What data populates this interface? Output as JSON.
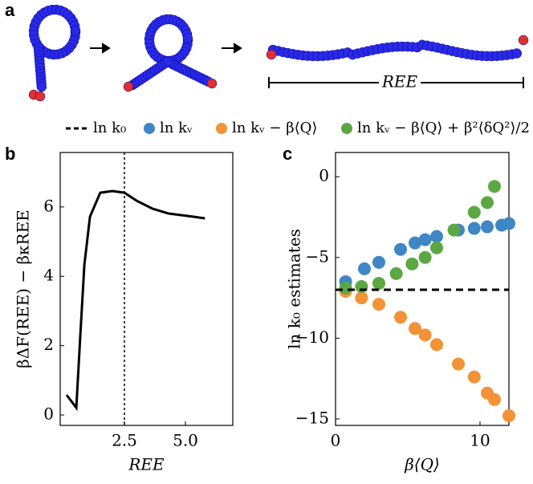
{
  "panel_labels": [
    "a",
    "b",
    "c"
  ],
  "ree_label": "REE",
  "legend": {
    "hline": "ln k₀",
    "series": [
      "ln kᵥ",
      "ln kᵥ − β⟨Q⟩",
      "ln kᵥ − β⟨Q⟩ + β²⟨δQ²⟩/2"
    ]
  },
  "chart_data": [
    {
      "type": "line",
      "x_label": "REE",
      "y_label": "βΔF(REE) − βκREE",
      "x": [
        0.13,
        0.53,
        0.69,
        0.86,
        1.09,
        1.51,
        2.01,
        2.5,
        3.0,
        3.65,
        4.31,
        5.3,
        5.8
      ],
      "values": [
        0.58,
        0.21,
        2.25,
        4.33,
        5.72,
        6.41,
        6.46,
        6.41,
        6.18,
        5.95,
        5.81,
        5.72,
        5.67
      ],
      "color": "#000000",
      "vline": 2.5,
      "xlim": [
        -0.13,
        6.94
      ],
      "ylim": [
        -0.3,
        7.57
      ],
      "xticks": [
        {
          "value": 2.5,
          "label": "2.5"
        },
        {
          "value": 5.0,
          "label": "5.0"
        }
      ],
      "yticks": [
        0,
        2,
        4,
        6
      ]
    },
    {
      "type": "scatter",
      "x_label": "β⟨Q⟩",
      "y_label": "ln k₀ estimates",
      "hline": -7,
      "xlim": [
        0,
        12
      ],
      "ylim": [
        -15.4,
        1.5
      ],
      "xticks": [
        0,
        10
      ],
      "yticks": [
        {
          "value": 0,
          "label": "0"
        },
        {
          "value": -5,
          "label": "−5"
        },
        {
          "value": -10,
          "label": "−10"
        },
        {
          "value": -15,
          "label": "−15"
        }
      ],
      "series": [
        {
          "name": "ln kᵥ",
          "color": "#3f86c4",
          "x": [
            0.7,
            2,
            3,
            4.5,
            5.5,
            6.2,
            7,
            8.5,
            9.6,
            10.5,
            11.5,
            12
          ],
          "values": [
            -6.5,
            -5.7,
            -5.3,
            -4.5,
            -4.1,
            -3.9,
            -3.7,
            -3.3,
            -3.2,
            -3.1,
            -3.0,
            -2.9
          ]
        },
        {
          "name": "ln kᵥ − β⟨Q⟩",
          "color": "#f39237",
          "x": [
            0.7,
            1.8,
            3,
            4.5,
            5.5,
            6.2,
            7,
            8.5,
            9.6,
            10.5,
            11,
            12
          ],
          "values": [
            -7.1,
            -7.5,
            -7.9,
            -8.7,
            -9.4,
            -9.8,
            -10.4,
            -11.6,
            -12.4,
            -13.4,
            -13.8,
            -14.8
          ]
        },
        {
          "name": "ln kᵥ − β⟨Q⟩ + β²⟨δQ²⟩/2",
          "color": "#5ba843",
          "x": [
            0.7,
            1.8,
            3,
            4.2,
            5.3,
            6.2,
            7,
            8.2,
            9.6,
            10.5,
            11
          ],
          "values": [
            -6.9,
            -6.8,
            -6.6,
            -6.0,
            -5.4,
            -5.0,
            -4.4,
            -3.3,
            -2.2,
            -1.6,
            -0.6
          ]
        }
      ]
    }
  ]
}
